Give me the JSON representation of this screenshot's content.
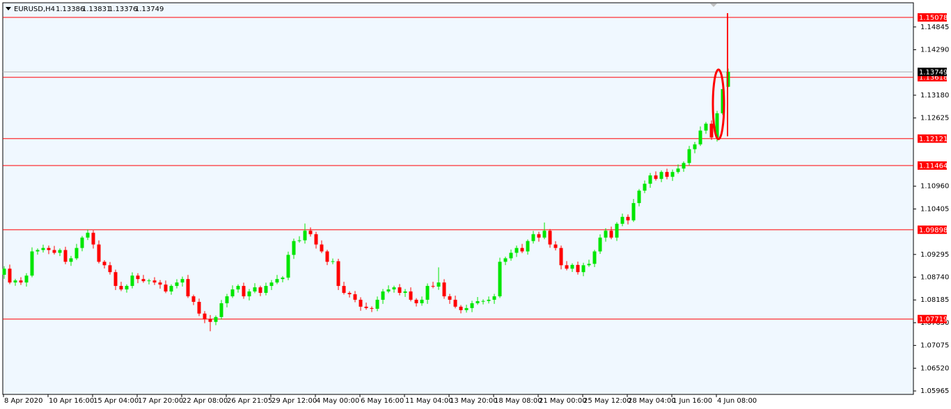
{
  "chart_data": {
    "type": "candlestick",
    "title": "EURUSD,H4",
    "up_color": "#00e600",
    "down_color": "#ff0000",
    "level_color": "#ff0000",
    "ylim": [
      1.05881,
      1.15435
    ],
    "yticks": [
      1.14845,
      {
        "value": 1.1429,
        "label": "1.14290"
      },
      {
        "value": 1.1318,
        "label": "1.13180"
      },
      1.12625,
      {
        "value": 1.1096,
        "label": "1.10960"
      },
      1.10405,
      1.09295,
      {
        "value": 1.0874,
        "label": "1.08740"
      },
      1.08185,
      {
        "value": 1.0763,
        "label": "1.07630"
      },
      1.07075,
      {
        "value": 1.0652,
        "label": "1.06520"
      },
      1.05965
    ],
    "levels": [
      1.15078,
      1.13618,
      1.12121,
      1.11464,
      1.09898,
      1.07719
    ],
    "categories": [
      "8 Apr 2020",
      null,
      null,
      null,
      null,
      null,
      null,
      null,
      "10 Apr 16:00",
      null,
      null,
      null,
      null,
      null,
      null,
      null,
      "15 Apr 04:00",
      null,
      null,
      null,
      null,
      null,
      null,
      null,
      "17 Apr 20:00",
      null,
      null,
      null,
      null,
      null,
      null,
      null,
      "22 Apr 08:00",
      null,
      null,
      null,
      null,
      null,
      null,
      null,
      "26 Apr 21:05",
      null,
      null,
      null,
      null,
      null,
      null,
      null,
      "29 Apr 12:00",
      null,
      null,
      null,
      null,
      null,
      null,
      null,
      "4 May 00:00",
      null,
      null,
      null,
      null,
      null,
      null,
      null,
      "6 May 16:00",
      null,
      null,
      null,
      null,
      null,
      null,
      null,
      "11 May 04:00",
      null,
      null,
      null,
      null,
      null,
      null,
      null,
      "13 May 20:00",
      null,
      null,
      null,
      null,
      null,
      null,
      null,
      "18 May 08:00",
      null,
      null,
      null,
      null,
      null,
      null,
      null,
      "21 May 00:00",
      null,
      null,
      null,
      null,
      null,
      null,
      null,
      "25 May 12:00",
      null,
      null,
      null,
      null,
      null,
      null,
      null,
      "28 May 04:00",
      null,
      null,
      null,
      null,
      null,
      null,
      null,
      "1 Jun 16:00",
      null,
      null,
      null,
      null,
      null,
      null,
      null,
      "4 Jun 08:00",
      null,
      null
    ],
    "open": [
      1.088,
      1.08948,
      1.08611,
      1.08661,
      1.08611,
      1.08779,
      1.09369,
      1.09403,
      1.09453,
      1.09403,
      1.09335,
      1.09403,
      1.09116,
      1.09201,
      1.09453,
      1.09706,
      1.09824,
      1.09538,
      1.09116,
      1.09032,
      1.08864,
      1.08527,
      1.08442,
      1.08527,
      1.08779,
      1.08695,
      1.08644,
      1.08661,
      1.08611,
      1.0856,
      1.08392,
      1.08527,
      1.08611,
      1.08695,
      1.08274,
      1.08139,
      1.07853,
      1.07718,
      1.0765,
      1.07768,
      1.08105,
      1.08274,
      1.08442,
      1.08527,
      1.08274,
      1.08392,
      1.08493,
      1.08358,
      1.08527,
      1.08611,
      1.08695,
      1.08729,
      1.09285,
      1.09622,
      1.0964,
      1.09875,
      1.0979,
      1.09538,
      1.09369,
      1.09116,
      1.0913,
      1.08527,
      1.08358,
      1.08324,
      1.0819,
      1.08021,
      1.07987,
      1.0797,
      1.0819,
      1.08392,
      1.08442,
      1.08493,
      1.08358,
      1.08392,
      1.0819,
      1.08105,
      1.0819,
      1.08527,
      1.0851,
      1.08611,
      1.08274,
      1.0819,
      1.08021,
      1.07937,
      1.07987,
      1.08105,
      1.08156,
      1.0816,
      1.0819,
      1.08274,
      1.09116,
      1.09201,
      1.09335,
      1.09453,
      1.09369,
      1.09622,
      1.0979,
      1.09706,
      1.09875,
      1.09538,
      1.09453,
      1.09032,
      1.08948,
      1.0904,
      1.08864,
      1.09032,
      1.09066,
      1.09369,
      1.09706,
      1.09875,
      1.09706,
      1.10043,
      1.10212,
      1.10127,
      1.10549,
      1.10852,
      1.1102,
      1.11223,
      1.11138,
      1.11307,
      1.11189,
      1.11307,
      1.11391,
      1.11526,
      1.11863,
      1.11981,
      1.12318,
      1.12486,
      1.12149,
      1.12739,
      1.13386
    ],
    "high": [
      1.09008,
      1.09048,
      1.08701,
      1.08741,
      1.08839,
      1.09469,
      1.09443,
      1.09533,
      1.09513,
      1.09503,
      1.09443,
      1.09483,
      1.09261,
      1.09553,
      1.09746,
      1.09904,
      1.09884,
      1.09638,
      1.09156,
      1.09112,
      1.08924,
      1.08627,
      1.08567,
      1.08859,
      1.08839,
      1.08795,
      1.08701,
      1.08741,
      1.08671,
      1.0866,
      1.08567,
      1.08691,
      1.08755,
      1.08795,
      1.08314,
      1.08219,
      1.07913,
      1.07818,
      1.07808,
      1.08185,
      1.08334,
      1.08542,
      1.08567,
      1.08607,
      1.08452,
      1.08593,
      1.08533,
      1.08607,
      1.08671,
      1.08795,
      1.08769,
      1.09365,
      1.09682,
      1.0974,
      1.1005,
      1.09955,
      1.0985,
      1.09638,
      1.09409,
      1.09196,
      1.0919,
      1.08627,
      1.08398,
      1.08404,
      1.0825,
      1.08121,
      1.08027,
      1.0827,
      1.08452,
      1.08542,
      1.08533,
      1.08573,
      1.08452,
      1.08492,
      1.0823,
      1.0827,
      1.08587,
      1.08627,
      1.0898,
      1.08691,
      1.08334,
      1.0829,
      1.08061,
      1.08067,
      1.08165,
      1.08256,
      1.082,
      1.0827,
      1.08334,
      1.09216,
      1.09241,
      1.09415,
      1.09513,
      1.09553,
      1.09662,
      1.0987,
      1.0985,
      1.10075,
      1.09915,
      1.09618,
      1.09513,
      1.09132,
      1.0908,
      1.0912,
      1.09092,
      1.09166,
      1.09409,
      1.09786,
      1.09935,
      1.09975,
      1.10083,
      1.10292,
      1.10272,
      1.10649,
      1.10892,
      1.111,
      1.11283,
      1.11323,
      1.11347,
      1.11387,
      1.11367,
      1.11491,
      1.11566,
      1.11943,
      1.12041,
      1.12418,
      1.12526,
      1.12566,
      1.12799,
      1.13429,
      1.13831
    ],
    "low": [
      1.087,
      1.08571,
      1.08531,
      1.08551,
      1.08511,
      1.08739,
      1.09289,
      1.09343,
      1.09303,
      1.09295,
      1.09255,
      1.09056,
      1.09016,
      1.09161,
      1.09373,
      1.09646,
      1.09438,
      1.09076,
      1.08952,
      1.08804,
      1.08427,
      1.08402,
      1.08362,
      1.08467,
      1.08595,
      1.08604,
      1.08564,
      1.08551,
      1.0846,
      1.08352,
      1.08312,
      1.08467,
      1.08511,
      1.08234,
      1.08059,
      1.07793,
      1.07618,
      1.0742,
      1.0757,
      1.07708,
      1.08005,
      1.08234,
      1.08362,
      1.08214,
      1.08174,
      1.08352,
      1.08278,
      1.08298,
      1.08427,
      1.08571,
      1.08615,
      1.08669,
      1.09185,
      1.09582,
      1.0956,
      1.0973,
      1.09438,
      1.09329,
      1.09036,
      1.09056,
      1.08427,
      1.08318,
      1.08244,
      1.0813,
      1.07921,
      1.07947,
      1.0789,
      1.0791,
      1.0809,
      1.08352,
      1.08362,
      1.08298,
      1.08258,
      1.0815,
      1.08025,
      1.08045,
      1.0809,
      1.0847,
      1.0843,
      1.08214,
      1.0809,
      1.07981,
      1.07857,
      1.07877,
      1.07887,
      1.08065,
      1.08076,
      1.081,
      1.0809,
      1.08234,
      1.09036,
      1.09141,
      1.09235,
      1.09329,
      1.09289,
      1.09562,
      1.09606,
      1.09666,
      1.09458,
      1.09393,
      1.08932,
      1.08908,
      1.08868,
      1.08804,
      1.08764,
      1.08992,
      1.08986,
      1.09309,
      1.09606,
      1.09666,
      1.09626,
      1.09983,
      1.10027,
      1.10087,
      1.10469,
      1.10792,
      1.1092,
      1.11098,
      1.11058,
      1.11129,
      1.11089,
      1.11267,
      1.11311,
      1.11466,
      1.11763,
      1.11941,
      1.12238,
      1.12089,
      1.12049,
      1.12699,
      1.13376
    ],
    "close": [
      1.08948,
      1.08611,
      1.08661,
      1.08611,
      1.08779,
      1.09369,
      1.09403,
      1.09453,
      1.09403,
      1.09335,
      1.09403,
      1.09116,
      1.09201,
      1.09453,
      1.09706,
      1.09824,
      1.09538,
      1.09116,
      1.09032,
      1.08864,
      1.08527,
      1.08442,
      1.08527,
      1.08779,
      1.08695,
      1.08644,
      1.08661,
      1.08611,
      1.0856,
      1.08392,
      1.08527,
      1.08611,
      1.08695,
      1.08274,
      1.08139,
      1.07853,
      1.07718,
      1.0765,
      1.07768,
      1.08105,
      1.08274,
      1.08442,
      1.08527,
      1.08274,
      1.08392,
      1.08493,
      1.08358,
      1.08527,
      1.08611,
      1.08695,
      1.08729,
      1.09285,
      1.09622,
      1.0964,
      1.09875,
      1.0979,
      1.09538,
      1.09369,
      1.09116,
      1.0913,
      1.08527,
      1.08358,
      1.08324,
      1.0819,
      1.08021,
      1.07987,
      1.0797,
      1.0819,
      1.08392,
      1.08442,
      1.08493,
      1.08358,
      1.08392,
      1.0819,
      1.08105,
      1.0819,
      1.08527,
      1.0851,
      1.08611,
      1.08274,
      1.0819,
      1.08021,
      1.07937,
      1.07987,
      1.08105,
      1.08156,
      1.0816,
      1.0819,
      1.08274,
      1.09116,
      1.09201,
      1.09335,
      1.09453,
      1.09369,
      1.09622,
      1.0979,
      1.09706,
      1.09875,
      1.09538,
      1.09453,
      1.09032,
      1.08948,
      1.0904,
      1.08864,
      1.09032,
      1.09066,
      1.09369,
      1.09706,
      1.09875,
      1.09706,
      1.10043,
      1.10212,
      1.10127,
      1.10549,
      1.10852,
      1.1102,
      1.11223,
      1.11138,
      1.11307,
      1.11189,
      1.11307,
      1.11391,
      1.11526,
      1.11863,
      1.11981,
      1.12318,
      1.12486,
      1.12149,
      1.12739,
      1.13329,
      1.13749
    ]
  }
}
